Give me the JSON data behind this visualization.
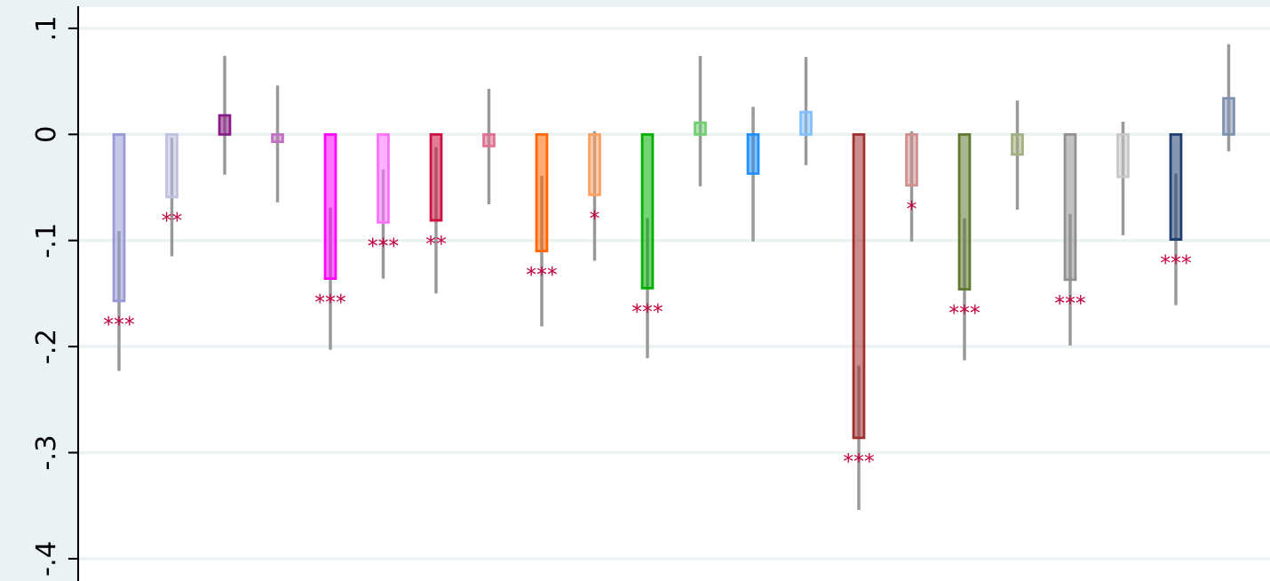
{
  "chart_data": {
    "type": "bar",
    "categories": [
      null,
      null,
      null,
      null,
      null,
      null,
      null,
      null,
      null,
      null,
      null,
      null,
      null,
      null,
      null,
      null,
      null,
      null,
      null,
      null,
      null,
      null
    ],
    "values": [
      -0.157,
      -0.059,
      0.018,
      -0.007,
      -0.136,
      -0.083,
      -0.081,
      -0.011,
      -0.11,
      -0.057,
      -0.145,
      0.011,
      -0.037,
      0.021,
      -0.286,
      -0.048,
      -0.146,
      -0.019,
      -0.137,
      -0.04,
      -0.099,
      0.034
    ],
    "errors": [
      [
        -0.223,
        -0.091
      ],
      [
        -0.115,
        -0.003
      ],
      [
        -0.038,
        0.074
      ],
      [
        -0.064,
        0.046
      ],
      [
        -0.203,
        -0.069
      ],
      [
        -0.136,
        -0.033
      ],
      [
        -0.15,
        -0.012
      ],
      [
        -0.066,
        0.043
      ],
      [
        -0.181,
        -0.039
      ],
      [
        -0.119,
        0.003
      ],
      [
        -0.211,
        -0.079
      ],
      [
        -0.049,
        0.074
      ],
      [
        -0.101,
        0.026
      ],
      [
        -0.029,
        0.073
      ],
      [
        -0.354,
        -0.218
      ],
      [
        -0.101,
        0.003
      ],
      [
        -0.213,
        -0.079
      ],
      [
        -0.071,
        0.032
      ],
      [
        -0.199,
        -0.075
      ],
      [
        -0.095,
        0.012
      ],
      [
        -0.161,
        -0.037
      ],
      [
        -0.016,
        0.085
      ]
    ],
    "colors": [
      "#9999d6",
      "#c0c0e0",
      "#8b1a89",
      "#c070c0",
      "#ff00ff",
      "#ff70ff",
      "#cc1040",
      "#e07090",
      "#ff6600",
      "#ffa060",
      "#00b000",
      "#70d070",
      "#1e90ff",
      "#80c0ff",
      "#a03030",
      "#d09090",
      "#607830",
      "#a0b080",
      "#909090",
      "#c8c8c8",
      "#1f3f6f",
      "#8090b0"
    ],
    "value_labels": [
      "***",
      "**",
      null,
      null,
      "***",
      "***",
      "**",
      null,
      "***",
      "*",
      "***",
      null,
      null,
      null,
      "***",
      "*",
      "***",
      null,
      "***",
      null,
      "***",
      null
    ],
    "ylim": [
      -0.421,
      0.12
    ],
    "yticks": [
      {
        "value": 0.1,
        "label": ".1"
      },
      0,
      {
        "value": -0.1,
        "label": "-.1"
      },
      {
        "value": -0.2,
        "label": "-.2"
      },
      {
        "value": -0.3,
        "label": "-.3"
      },
      {
        "value": -0.4,
        "label": "-.4"
      }
    ],
    "grid": "y",
    "tick_labels": "y"
  }
}
